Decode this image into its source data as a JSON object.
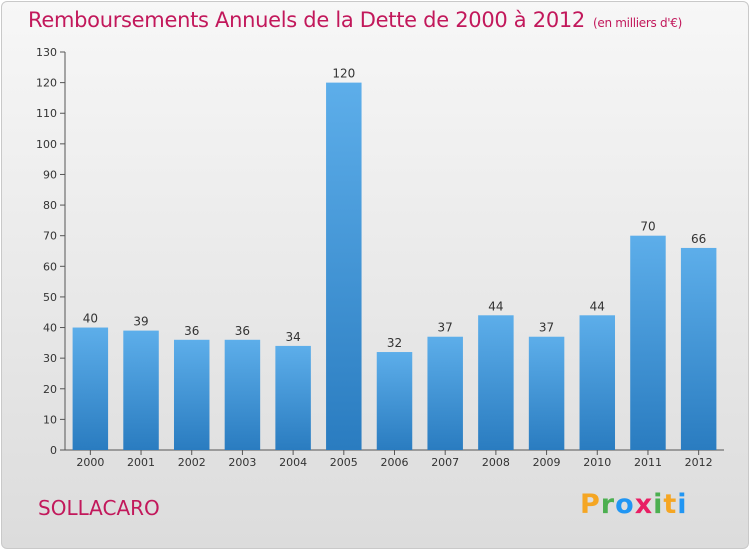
{
  "header": {
    "title": "Remboursements Annuels de la Dette de 2000 à 2012",
    "subtitle": "(en milliers d'€)"
  },
  "footer": {
    "commune": "SOLLACARO",
    "logo": "Proxiti"
  },
  "colors": {
    "title": "#c2185b",
    "bar_light": "#5daeea",
    "bar_dark": "#2a7cc0"
  },
  "chart_data": {
    "type": "bar",
    "title": "Remboursements Annuels de la Dette de 2000 à 2012",
    "subtitle": "(en milliers d'€)",
    "xlabel": "",
    "ylabel": "",
    "categories": [
      "2000",
      "2001",
      "2002",
      "2003",
      "2004",
      "2005",
      "2006",
      "2007",
      "2008",
      "2009",
      "2010",
      "2011",
      "2012"
    ],
    "values": [
      40,
      39,
      36,
      36,
      34,
      120,
      32,
      37,
      44,
      37,
      44,
      70,
      66
    ],
    "ylim": [
      0,
      130
    ],
    "yticks": [
      0,
      10,
      20,
      30,
      40,
      50,
      60,
      70,
      80,
      90,
      100,
      110,
      120,
      130
    ],
    "grid": false,
    "legend": "none"
  }
}
